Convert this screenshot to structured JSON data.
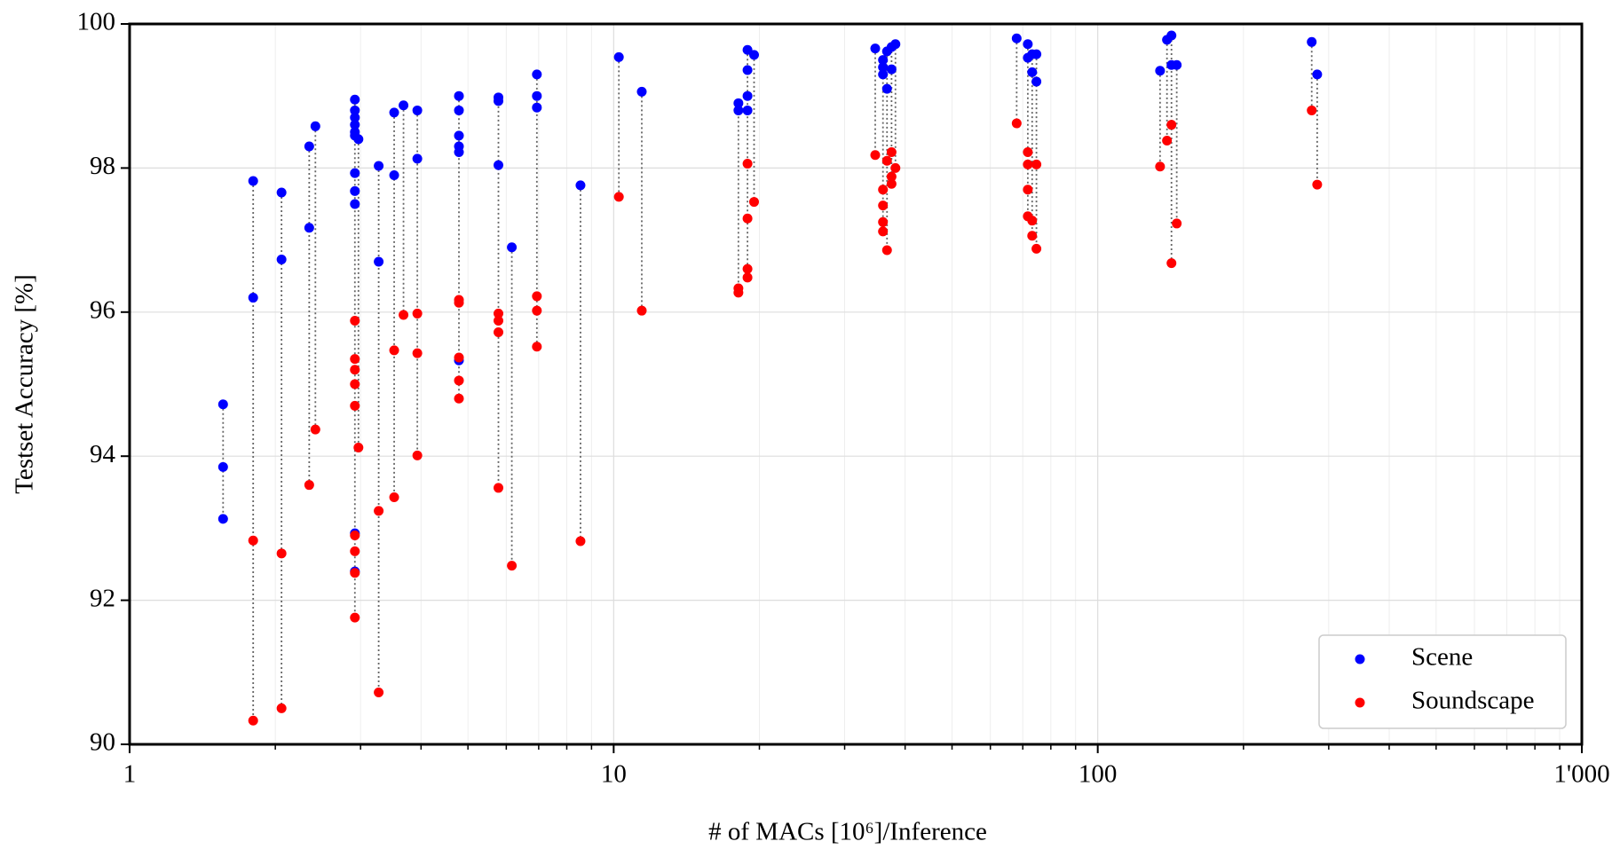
{
  "chart_data": {
    "type": "scatter",
    "x_label": "# of MACs [10⁶]/Inference",
    "y_label": "Testset Accuracy [%]",
    "xscale": "log",
    "grid": true,
    "legend": "lower right",
    "xlim": [
      1,
      1000
    ],
    "xticks": [
      1,
      10,
      100,
      {
        "value": 1000,
        "label": "1'000"
      }
    ],
    "ylim": [
      90,
      100
    ],
    "yticks": [
      90,
      92,
      94,
      96,
      98,
      100
    ],
    "series": [
      {
        "name": "Scene",
        "color": "#0000ff",
        "x": [
          1.56,
          1.56,
          1.56,
          1.8,
          1.8,
          2.06,
          2.06,
          2.35,
          2.35,
          2.42,
          2.92,
          2.92,
          2.92,
          2.92,
          2.92,
          2.92,
          2.92,
          2.92,
          2.92,
          2.92,
          2.92,
          2.97,
          3.27,
          3.27,
          3.52,
          3.52,
          3.68,
          3.93,
          3.93,
          4.79,
          4.79,
          4.79,
          4.79,
          4.79,
          4.79,
          5.78,
          5.78,
          5.78,
          6.16,
          6.94,
          6.94,
          6.94,
          8.54,
          10.25,
          11.43,
          18.1,
          18.1,
          18.9,
          18.9,
          18.9,
          18.9,
          19.5,
          34.7,
          36,
          36,
          36,
          36.7,
          36.7,
          37.5,
          37.5,
          38.2,
          68,
          71.7,
          71.7,
          73.2,
          73.2,
          74.7,
          74.7,
          134.5,
          139,
          142,
          142,
          145.6,
          276.7,
          284
        ],
        "values": [
          94.72,
          93.85,
          93.13,
          97.82,
          96.2,
          97.66,
          96.73,
          98.3,
          97.17,
          98.58,
          98.95,
          98.8,
          98.7,
          98.6,
          98.5,
          97.93,
          97.68,
          97.5,
          92.93,
          92.4,
          98.45,
          98.4,
          98.03,
          96.7,
          98.77,
          97.9,
          98.87,
          98.8,
          98.13,
          99.0,
          98.8,
          98.45,
          98.3,
          98.22,
          95.33,
          98.98,
          98.93,
          98.04,
          96.9,
          99.3,
          99.0,
          98.84,
          97.76,
          99.54,
          99.06,
          98.9,
          98.8,
          99.64,
          99.36,
          99.0,
          98.8,
          99.57,
          99.66,
          99.5,
          99.4,
          99.3,
          99.62,
          99.1,
          99.68,
          99.37,
          99.72,
          99.8,
          99.72,
          99.53,
          99.58,
          99.33,
          99.58,
          99.2,
          99.35,
          99.78,
          99.84,
          99.43,
          99.43,
          99.75,
          99.3
        ]
      },
      {
        "name": "Soundscape",
        "color": "#ff0000",
        "x": [
          1.8,
          1.8,
          2.06,
          2.06,
          2.35,
          2.42,
          2.92,
          2.92,
          2.92,
          2.92,
          2.92,
          2.92,
          2.92,
          2.92,
          2.92,
          2.97,
          3.27,
          3.27,
          3.52,
          3.52,
          3.68,
          3.93,
          3.93,
          3.93,
          4.79,
          4.79,
          4.79,
          4.79,
          4.79,
          5.78,
          5.78,
          5.78,
          5.78,
          6.16,
          6.94,
          6.94,
          6.94,
          8.54,
          10.25,
          11.43,
          18.1,
          18.1,
          18.9,
          18.9,
          18.9,
          18.9,
          19.5,
          34.7,
          36,
          36,
          36,
          36,
          36.7,
          36.7,
          37.5,
          37.5,
          37.5,
          38.2,
          68,
          71.7,
          71.7,
          71.7,
          71.7,
          73.2,
          73.2,
          74.7,
          74.7,
          134.5,
          139,
          142,
          142,
          145.6,
          276.7,
          284
        ],
        "values": [
          92.83,
          90.33,
          92.65,
          90.5,
          93.6,
          94.37,
          95.88,
          95.35,
          95.2,
          95.0,
          94.7,
          92.9,
          92.68,
          92.38,
          91.76,
          94.12,
          93.24,
          90.72,
          95.47,
          93.43,
          95.96,
          95.98,
          95.43,
          94.01,
          96.17,
          96.13,
          95.37,
          95.05,
          94.8,
          95.98,
          95.88,
          95.72,
          93.56,
          92.48,
          96.22,
          96.02,
          95.52,
          92.82,
          97.6,
          96.02,
          96.33,
          96.27,
          98.06,
          97.3,
          96.6,
          96.48,
          97.53,
          98.18,
          97.7,
          97.48,
          97.25,
          97.12,
          98.1,
          96.86,
          98.22,
          97.88,
          97.78,
          98.0,
          98.62,
          98.22,
          98.05,
          97.7,
          97.33,
          97.27,
          97.06,
          98.05,
          96.88,
          98.02,
          98.38,
          98.6,
          96.68,
          97.23,
          98.8,
          97.77
        ]
      }
    ]
  }
}
